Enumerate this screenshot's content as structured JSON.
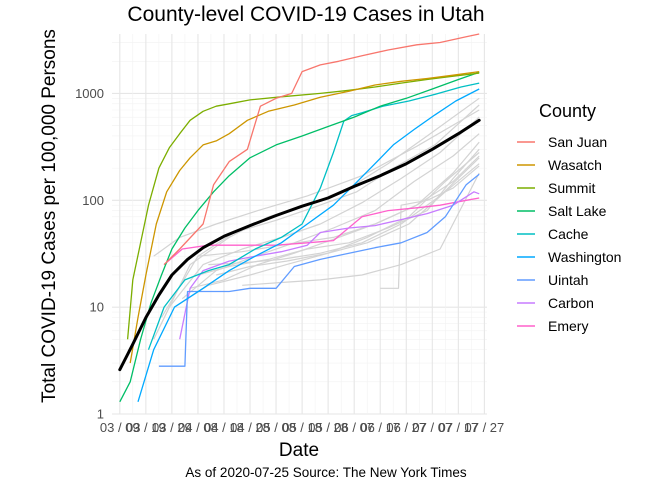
{
  "chart_data": {
    "type": "line",
    "title": "County-level COVID-19 Cases in Utah",
    "xlabel": "Date",
    "ylabel": "Total COVID-19 Cases per 100,000 Persons",
    "caption": "As of 2020-07-25 Source: The New York Times",
    "y_scale": "log10",
    "ylim": [
      1,
      3600
    ],
    "y_ticks": [
      1,
      10,
      100,
      1000
    ],
    "y_tick_labels": [
      "1",
      "10",
      "100",
      "1000"
    ],
    "x_ticks": [
      "03 / 09",
      "03 / 19",
      "03 / 29",
      "04 / 08",
      "04 / 18",
      "04 / 28",
      "05 / 08",
      "05 / 18",
      "05 / 28",
      "06 / 07",
      "06 / 17",
      "06 / 27",
      "07 / 07",
      "07 / 17",
      "07 / 27"
    ],
    "x_range": [
      "2020-03-06",
      "2020-07-28"
    ],
    "grid": true,
    "legend": {
      "title": "County",
      "position": "right"
    },
    "series": [
      {
        "name": "San Juan",
        "color": "#F8766D",
        "x": [
          "2020-03-26",
          "2020-04-01",
          "2020-04-10",
          "2020-04-14",
          "2020-04-20",
          "2020-04-27",
          "2020-05-02",
          "2020-05-08",
          "2020-05-14",
          "2020-05-18",
          "2020-05-25",
          "2020-06-01",
          "2020-06-10",
          "2020-06-20",
          "2020-07-01",
          "2020-07-10",
          "2020-07-20",
          "2020-07-25"
        ],
        "y": [
          25,
          35,
          60,
          140,
          230,
          300,
          760,
          900,
          1000,
          1600,
          1850,
          2000,
          2250,
          2550,
          2850,
          3000,
          3400,
          3600
        ]
      },
      {
        "name": "Wasatch",
        "color": "#CD9600",
        "x": [
          "2020-03-13",
          "2020-03-16",
          "2020-03-19",
          "2020-03-23",
          "2020-03-27",
          "2020-04-01",
          "2020-04-05",
          "2020-04-10",
          "2020-04-15",
          "2020-04-20",
          "2020-04-27",
          "2020-05-05",
          "2020-05-15",
          "2020-05-25",
          "2020-06-05",
          "2020-06-15",
          "2020-06-25",
          "2020-07-05",
          "2020-07-15",
          "2020-07-25"
        ],
        "y": [
          3,
          8,
          20,
          60,
          120,
          190,
          250,
          330,
          360,
          420,
          560,
          680,
          780,
          920,
          1050,
          1200,
          1300,
          1380,
          1480,
          1600
        ]
      },
      {
        "name": "Summit",
        "color": "#7CAE00",
        "x": [
          "2020-03-12",
          "2020-03-14",
          "2020-03-17",
          "2020-03-20",
          "2020-03-24",
          "2020-03-28",
          "2020-04-01",
          "2020-04-05",
          "2020-04-10",
          "2020-04-15",
          "2020-04-20",
          "2020-04-28",
          "2020-05-10",
          "2020-05-25",
          "2020-06-05",
          "2020-06-15",
          "2020-06-25",
          "2020-07-05",
          "2020-07-15",
          "2020-07-25"
        ],
        "y": [
          5,
          18,
          40,
          90,
          200,
          310,
          420,
          560,
          680,
          760,
          800,
          870,
          930,
          1000,
          1070,
          1150,
          1250,
          1350,
          1450,
          1550
        ]
      },
      {
        "name": "Salt Lake",
        "color": "#00BE67",
        "x": [
          "2020-03-09",
          "2020-03-13",
          "2020-03-17",
          "2020-03-21",
          "2020-03-25",
          "2020-03-29",
          "2020-04-03",
          "2020-04-08",
          "2020-04-14",
          "2020-04-20",
          "2020-04-28",
          "2020-05-08",
          "2020-05-18",
          "2020-05-28",
          "2020-06-07",
          "2020-06-17",
          "2020-06-27",
          "2020-07-07",
          "2020-07-17",
          "2020-07-25"
        ],
        "y": [
          1.3,
          2,
          5,
          11,
          20,
          35,
          55,
          80,
          120,
          170,
          250,
          330,
          400,
          490,
          600,
          760,
          900,
          1100,
          1350,
          1580
        ]
      },
      {
        "name": "Cache",
        "color": "#00BFC4",
        "x": [
          "2020-03-20",
          "2020-03-26",
          "2020-04-03",
          "2020-04-12",
          "2020-04-20",
          "2020-04-30",
          "2020-05-10",
          "2020-05-18",
          "2020-05-25",
          "2020-05-30",
          "2020-06-03",
          "2020-06-06",
          "2020-06-10",
          "2020-06-18",
          "2020-06-28",
          "2020-07-08",
          "2020-07-18",
          "2020-07-25"
        ],
        "y": [
          4,
          10,
          18,
          22,
          25,
          35,
          45,
          60,
          130,
          280,
          550,
          620,
          660,
          760,
          850,
          980,
          1150,
          1250
        ]
      },
      {
        "name": "Washington",
        "color": "#00A9FF",
        "x": [
          "2020-03-16",
          "2020-03-22",
          "2020-03-30",
          "2020-04-10",
          "2020-04-20",
          "2020-04-30",
          "2020-05-10",
          "2020-05-20",
          "2020-05-30",
          "2020-06-07",
          "2020-06-15",
          "2020-06-22",
          "2020-06-30",
          "2020-07-08",
          "2020-07-16",
          "2020-07-25"
        ],
        "y": [
          1.3,
          4,
          10,
          15,
          22,
          30,
          40,
          60,
          90,
          140,
          220,
          330,
          460,
          630,
          850,
          1100
        ]
      },
      {
        "name": "Uintah",
        "color": "#619CFF",
        "x": [
          "2020-03-24",
          "2020-04-03",
          "2020-04-04",
          "2020-04-20",
          "2020-04-28",
          "2020-05-08",
          "2020-05-15",
          "2020-05-25",
          "2020-06-05",
          "2020-06-15",
          "2020-06-25",
          "2020-07-05",
          "2020-07-12",
          "2020-07-20",
          "2020-07-25"
        ],
        "y": [
          2.8,
          2.8,
          14,
          14,
          15,
          15,
          24,
          28,
          32,
          36,
          40,
          50,
          70,
          140,
          175
        ]
      },
      {
        "name": "Carbon",
        "color": "#C77CFF",
        "x": [
          "2020-04-01",
          "2020-04-05",
          "2020-04-10",
          "2020-04-20",
          "2020-04-30",
          "2020-05-10",
          "2020-05-20",
          "2020-05-25",
          "2020-06-05",
          "2020-06-15",
          "2020-06-25",
          "2020-07-05",
          "2020-07-15",
          "2020-07-23",
          "2020-07-25"
        ],
        "y": [
          5,
          15,
          22,
          27,
          30,
          33,
          38,
          50,
          55,
          58,
          66,
          75,
          90,
          120,
          115
        ]
      },
      {
        "name": "Emery",
        "color": "#FF61CC",
        "x": [
          "2020-03-26",
          "2020-04-02",
          "2020-04-12",
          "2020-04-25",
          "2020-05-08",
          "2020-05-20",
          "2020-05-30",
          "2020-06-10",
          "2020-06-20",
          "2020-07-01",
          "2020-07-10",
          "2020-07-20",
          "2020-07-25"
        ],
        "y": [
          25,
          35,
          38,
          38,
          38,
          40,
          42,
          70,
          80,
          85,
          90,
          100,
          105
        ]
      }
    ],
    "other_counties": {
      "color": "#d3d3d3",
      "series": [
        {
          "x": [
            "2020-03-22",
            "2020-04-05",
            "2020-04-20",
            "2020-05-05",
            "2020-05-20",
            "2020-06-05",
            "2020-06-20",
            "2020-07-05",
            "2020-07-25"
          ],
          "y": [
            5,
            25,
            45,
            70,
            90,
            130,
            220,
            400,
            900
          ]
        },
        {
          "x": [
            "2020-03-25",
            "2020-04-08",
            "2020-04-22",
            "2020-05-08",
            "2020-05-22",
            "2020-06-08",
            "2020-06-22",
            "2020-07-08",
            "2020-07-25"
          ],
          "y": [
            8,
            30,
            50,
            65,
            85,
            120,
            200,
            330,
            780
          ]
        },
        {
          "x": [
            "2020-03-28",
            "2020-04-10",
            "2020-04-25",
            "2020-05-10",
            "2020-05-25",
            "2020-06-10",
            "2020-06-25",
            "2020-07-10",
            "2020-07-25"
          ],
          "y": [
            10,
            25,
            35,
            45,
            60,
            95,
            160,
            280,
            600
          ]
        },
        {
          "x": [
            "2020-04-02",
            "2020-04-15",
            "2020-04-30",
            "2020-05-15",
            "2020-05-30",
            "2020-06-15",
            "2020-06-30",
            "2020-07-15",
            "2020-07-25"
          ],
          "y": [
            12,
            22,
            30,
            40,
            55,
            80,
            150,
            260,
            420
          ]
        },
        {
          "x": [
            "2020-04-05",
            "2020-04-18",
            "2020-05-01",
            "2020-05-15",
            "2020-06-01",
            "2020-06-15",
            "2020-07-01",
            "2020-07-15",
            "2020-07-25"
          ],
          "y": [
            15,
            18,
            25,
            32,
            45,
            60,
            90,
            180,
            350
          ]
        },
        {
          "x": [
            "2020-04-08",
            "2020-04-20",
            "2020-05-05",
            "2020-05-20",
            "2020-06-05",
            "2020-06-20",
            "2020-07-05",
            "2020-07-15",
            "2020-07-25"
          ],
          "y": [
            20,
            24,
            28,
            35,
            40,
            55,
            80,
            160,
            300
          ]
        },
        {
          "x": [
            "2020-03-30",
            "2020-04-12",
            "2020-04-28",
            "2020-05-12",
            "2020-05-28",
            "2020-06-12",
            "2020-06-28",
            "2020-07-12",
            "2020-07-25"
          ],
          "y": [
            10,
            16,
            20,
            25,
            32,
            45,
            70,
            150,
            280
          ]
        },
        {
          "x": [
            "2020-04-12",
            "2020-04-25",
            "2020-05-10",
            "2020-05-25",
            "2020-06-10",
            "2020-06-25",
            "2020-07-10",
            "2020-07-25"
          ],
          "y": [
            25,
            26,
            28,
            32,
            40,
            60,
            110,
            250
          ]
        },
        {
          "x": [
            "2020-04-25",
            "2020-05-10",
            "2020-05-25",
            "2020-06-10",
            "2020-06-25",
            "2020-07-10",
            "2020-07-25"
          ],
          "y": [
            16,
            17,
            18,
            20,
            25,
            35,
            180
          ]
        },
        {
          "x": [
            "2020-06-17",
            "2020-06-24",
            "2020-06-25",
            "2020-07-05",
            "2020-07-15",
            "2020-07-25"
          ],
          "y": [
            15,
            15,
            90,
            100,
            130,
            210
          ]
        },
        {
          "x": [
            "2020-04-15",
            "2020-04-28",
            "2020-05-12",
            "2020-05-28",
            "2020-06-12",
            "2020-06-28",
            "2020-07-12",
            "2020-07-25"
          ],
          "y": [
            20,
            24,
            27,
            32,
            40,
            60,
            120,
            220
          ]
        },
        {
          "x": [
            "2020-03-22",
            "2020-04-01",
            "2020-04-15",
            "2020-05-01",
            "2020-05-20",
            "2020-06-10",
            "2020-07-01",
            "2020-07-25"
          ],
          "y": [
            30,
            45,
            60,
            80,
            110,
            170,
            320,
            700
          ]
        },
        {
          "x": [
            "2020-04-08",
            "2020-04-25",
            "2020-05-10",
            "2020-05-30",
            "2020-06-15",
            "2020-07-01",
            "2020-07-15",
            "2020-07-25"
          ],
          "y": [
            30,
            33,
            38,
            45,
            60,
            90,
            150,
            260
          ]
        }
      ]
    },
    "state_trend": {
      "color": "#000000",
      "x": [
        "2020-03-09",
        "2020-03-14",
        "2020-03-19",
        "2020-03-24",
        "2020-03-29",
        "2020-04-04",
        "2020-04-10",
        "2020-04-18",
        "2020-04-28",
        "2020-05-08",
        "2020-05-18",
        "2020-05-28",
        "2020-06-07",
        "2020-06-17",
        "2020-06-27",
        "2020-07-07",
        "2020-07-17",
        "2020-07-25"
      ],
      "y": [
        2.6,
        4.5,
        8,
        13,
        20,
        28,
        36,
        46,
        58,
        72,
        88,
        105,
        135,
        170,
        220,
        300,
        420,
        560
      ]
    }
  }
}
